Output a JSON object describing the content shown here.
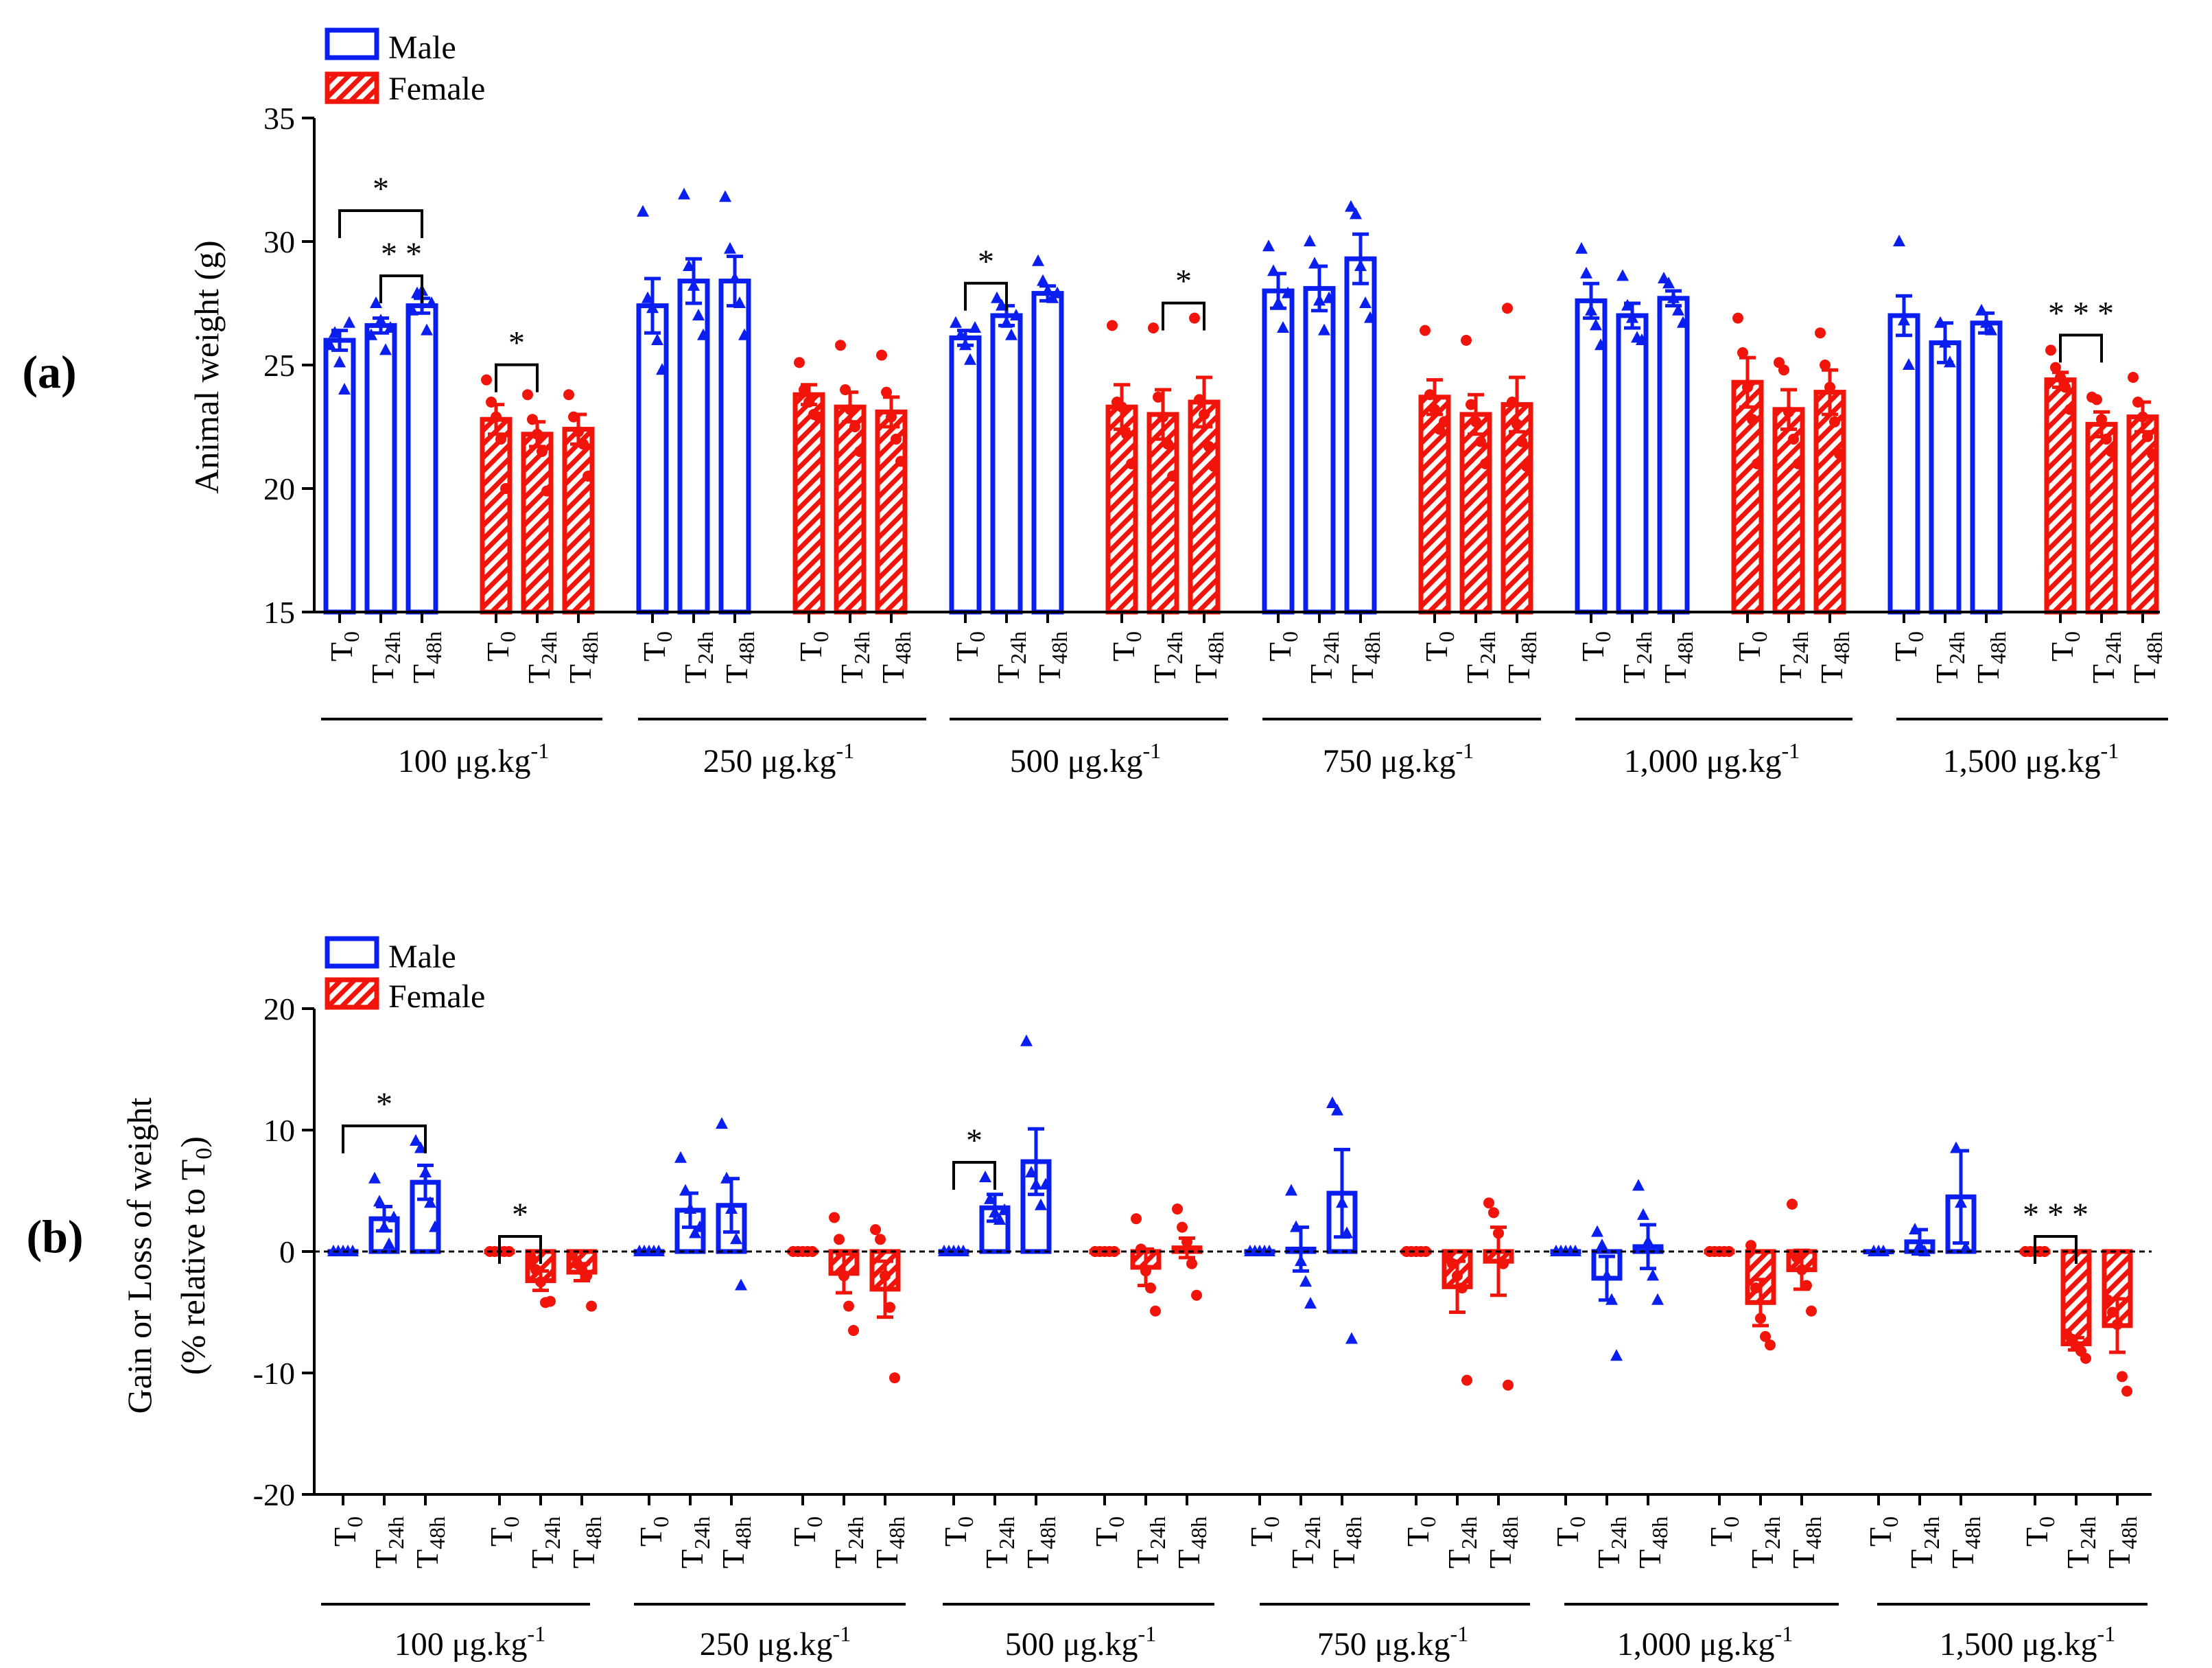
{
  "colors": {
    "male": "#0a1ef0",
    "female": "#f0140a",
    "axis": "#000000"
  },
  "legend": {
    "male": "Male",
    "female": "Female"
  },
  "group_labels": [
    "100 μg.kg",
    "250 μg.kg",
    "500 μg.kg",
    "750 μg.kg",
    "1,000 μg.kg",
    "1,500 μg.kg"
  ],
  "group_exponent": "-1",
  "time_points": [
    {
      "base": "T",
      "sub": "0"
    },
    {
      "base": "T",
      "sub": "24h"
    },
    {
      "base": "T",
      "sub": "48h"
    }
  ],
  "chart_data": [
    {
      "panel": "(a)",
      "type": "bar",
      "ylabel": "Animal weight (g)",
      "ylim": [
        15,
        35
      ],
      "yticks": [
        15,
        20,
        25,
        30,
        35
      ],
      "zero_line": false,
      "series": [
        {
          "name": "Male",
          "group": "100 μg.kg-1",
          "means": [
            26.0,
            26.6,
            27.4
          ],
          "sem": [
            0.4,
            0.3,
            0.3
          ],
          "points": [
            [
              25.8,
              26.3,
              25.1,
              24.0,
              26.7
            ],
            [
              26.2,
              27.5,
              26.8,
              25.6,
              26.5
            ],
            [
              27.2,
              27.9,
              28.0,
              26.4,
              27.5
            ]
          ]
        },
        {
          "name": "Female",
          "group": "100 μg.kg-1",
          "means": [
            22.8,
            22.2,
            22.4
          ],
          "sem": [
            0.6,
            0.5,
            0.6
          ],
          "points": [
            [
              24.4,
              23.5,
              22.9,
              22.0,
              20.0
            ],
            [
              23.8,
              22.8,
              22.2,
              21.5,
              19.9
            ],
            [
              23.8,
              22.9,
              22.3,
              21.8,
              20.5
            ]
          ]
        },
        {
          "name": "Male",
          "group": "250 μg.kg-1",
          "means": [
            27.4,
            28.4,
            28.4
          ],
          "sem": [
            1.1,
            0.9,
            1.0
          ],
          "points": [
            [
              31.2,
              27.7,
              27.3,
              26.0,
              24.8
            ],
            [
              31.9,
              29.0,
              28.2,
              27.0,
              26.2
            ],
            [
              31.8,
              29.7,
              28.5,
              27.5,
              26.2
            ]
          ]
        },
        {
          "name": "Female",
          "group": "250 μg.kg-1",
          "means": [
            23.8,
            23.3,
            23.1
          ],
          "sem": [
            0.4,
            0.6,
            0.6
          ],
          "points": [
            [
              25.1,
              24.0,
              23.5,
              23.0,
              22.9
            ],
            [
              25.8,
              24.0,
              23.2,
              22.5,
              21.5
            ],
            [
              25.4,
              23.9,
              22.9,
              22.0,
              21.1
            ]
          ]
        },
        {
          "name": "Male",
          "group": "500 μg.kg-1",
          "means": [
            26.1,
            27.0,
            27.9
          ],
          "sem": [
            0.3,
            0.4,
            0.3
          ],
          "points": [
            [
              26.7,
              26.2,
              25.8,
              25.2,
              26.5
            ],
            [
              27.7,
              27.4,
              26.7,
              26.2,
              27.0
            ],
            [
              29.2,
              28.4,
              28.0,
              27.7,
              27.9
            ]
          ]
        },
        {
          "name": "Female",
          "group": "500 μg.kg-1",
          "means": [
            23.3,
            23.0,
            23.5
          ],
          "sem": [
            0.9,
            1.0,
            1.0
          ],
          "points": [
            [
              26.6,
              23.5,
              23.3,
              22.2,
              21.0
            ],
            [
              26.5,
              23.7,
              22.9,
              21.8,
              20.5
            ],
            [
              26.9,
              23.6,
              23.0,
              21.7,
              20.9
            ]
          ]
        },
        {
          "name": "Male",
          "group": "750 μg.kg-1",
          "means": [
            28.0,
            28.1,
            29.3
          ],
          "sem": [
            0.7,
            0.9,
            1.0
          ],
          "points": [
            [
              29.8,
              28.8,
              27.5,
              26.5,
              27.9
            ],
            [
              30.0,
              29.1,
              27.6,
              26.4,
              27.7
            ],
            [
              31.4,
              31.1,
              29.0,
              27.5,
              26.9
            ]
          ]
        },
        {
          "name": "Female",
          "group": "750 μg.kg-1",
          "means": [
            23.7,
            23.0,
            23.4
          ],
          "sem": [
            0.7,
            0.8,
            1.1
          ],
          "points": [
            [
              26.4,
              23.8,
              23.2,
              22.4,
              22.7
            ],
            [
              26.0,
              23.4,
              22.7,
              21.9,
              21.0
            ],
            [
              27.3,
              23.5,
              22.6,
              21.9,
              20.9
            ]
          ]
        },
        {
          "name": "Male",
          "group": "1,000 μg.kg-1",
          "means": [
            27.6,
            27.0,
            27.7
          ],
          "sem": [
            0.7,
            0.5,
            0.3
          ],
          "points": [
            [
              29.7,
              28.7,
              27.2,
              26.6,
              25.8
            ],
            [
              28.6,
              27.4,
              26.9,
              26.1,
              26.0
            ],
            [
              28.5,
              28.3,
              27.7,
              27.2,
              26.7
            ]
          ]
        },
        {
          "name": "Female",
          "group": "1,000 μg.kg-1",
          "means": [
            24.3,
            23.2,
            23.9
          ],
          "sem": [
            1.0,
            0.8,
            0.9
          ],
          "points": [
            [
              26.9,
              25.5,
              24.1,
              22.8,
              21.0
            ],
            [
              25.1,
              24.8,
              23.1,
              22.0,
              21.0
            ],
            [
              26.3,
              25.0,
              24.1,
              22.7,
              21.4
            ]
          ]
        },
        {
          "name": "Male",
          "group": "1,500 μg.kg-1",
          "means": [
            27.0,
            25.9,
            26.7
          ],
          "sem": [
            0.8,
            0.8,
            0.4
          ],
          "points": [
            [
              30.0,
              26.8,
              25.0
            ],
            [
              26.7,
              25.9,
              25.1
            ],
            [
              27.2,
              26.7,
              26.4
            ]
          ]
        },
        {
          "name": "Female",
          "group": "1,500 μg.kg-1",
          "means": [
            24.4,
            22.6,
            22.9
          ],
          "sem": [
            0.3,
            0.5,
            0.6
          ],
          "points": [
            [
              25.6,
              24.9,
              24.5,
              24.1,
              23.2
            ],
            [
              23.7,
              23.6,
              22.8,
              22.0,
              21.5
            ],
            [
              24.5,
              23.5,
              22.9,
              22.1,
              21.4
            ]
          ]
        }
      ],
      "significance": [
        {
          "series": 0,
          "from": 0,
          "to": 2,
          "label": "*",
          "level": 2
        },
        {
          "series": 0,
          "from": 1,
          "to": 2,
          "label": "* *",
          "level": 1
        },
        {
          "series": 1,
          "from": 0,
          "to": 1,
          "label": "*",
          "level": 1
        },
        {
          "series": 4,
          "from": 0,
          "to": 1,
          "label": "*",
          "level": 1
        },
        {
          "series": 5,
          "from": 1,
          "to": 2,
          "label": "*",
          "level": 1
        },
        {
          "series": 11,
          "from": 0,
          "to": 1,
          "label": "* * *",
          "level": 1
        }
      ]
    },
    {
      "panel": "(b)",
      "type": "bar",
      "ylabel": "Gain or Loss of weight",
      "ylabel2_prefix": "(% relative to T",
      "ylabel2_sub": "0",
      "ylabel2_suffix": ")",
      "ylim": [
        -20,
        20
      ],
      "yticks": [
        -20,
        -10,
        0,
        10,
        20
      ],
      "zero_line": true,
      "series": [
        {
          "name": "Male",
          "group": "100 μg.kg-1",
          "means": [
            0,
            2.7,
            5.7
          ],
          "sem": [
            0,
            1.0,
            1.4
          ],
          "points": [
            [
              0,
              0,
              0,
              0,
              0
            ],
            [
              6.0,
              4.1,
              2.0,
              0.6,
              2.8
            ],
            [
              9.1,
              8.5,
              6.5,
              4.0,
              2.0
            ]
          ]
        },
        {
          "name": "Female",
          "group": "100 μg.kg-1",
          "means": [
            0,
            -2.4,
            -1.7
          ],
          "sem": [
            0,
            0.8,
            0.7
          ],
          "points": [
            [
              0,
              0,
              0,
              0,
              0
            ],
            [
              -0.5,
              -1.5,
              -2.5,
              -4.2,
              -4.1
            ],
            [
              -0.3,
              -1.0,
              -1.5,
              -2.0,
              -4.5
            ]
          ]
        },
        {
          "name": "Male",
          "group": "250 μg.kg-1",
          "means": [
            0,
            3.4,
            3.8
          ],
          "sem": [
            0,
            1.4,
            2.2
          ],
          "points": [
            [
              0,
              0,
              0,
              0,
              0
            ],
            [
              7.7,
              5.0,
              3.5,
              1.5,
              2.0
            ],
            [
              10.5,
              6.0,
              3.5,
              1.0,
              -2.8
            ]
          ]
        },
        {
          "name": "Female",
          "group": "250 μg.kg-1",
          "means": [
            0,
            -1.8,
            -3.1
          ],
          "sem": [
            0,
            1.6,
            2.3
          ],
          "points": [
            [
              0,
              0,
              0,
              0,
              0
            ],
            [
              2.8,
              1.0,
              -2.0,
              -4.5,
              -6.5
            ],
            [
              1.8,
              1.0,
              -2.0,
              -4.6,
              -10.4
            ]
          ]
        },
        {
          "name": "Male",
          "group": "500 μg.kg-1",
          "means": [
            0,
            3.6,
            7.4
          ],
          "sem": [
            0,
            1.1,
            2.7
          ],
          "points": [
            [
              0,
              0,
              0,
              0,
              0
            ],
            [
              6.1,
              4.3,
              3.2,
              2.6,
              3.4
            ],
            [
              17.3,
              6.5,
              5.5,
              3.8,
              5.5
            ]
          ]
        },
        {
          "name": "Female",
          "group": "500 μg.kg-1",
          "means": [
            0,
            -1.3,
            0.3
          ],
          "sem": [
            0,
            1.5,
            0.8
          ],
          "points": [
            [
              0,
              0,
              0,
              0,
              0
            ],
            [
              2.7,
              0.2,
              -1.6,
              -3.0,
              -4.9
            ],
            [
              3.5,
              2.0,
              0.8,
              -1.0,
              -3.6
            ]
          ]
        },
        {
          "name": "Male",
          "group": "750 μg.kg-1",
          "means": [
            0,
            0.2,
            4.8
          ],
          "sem": [
            0,
            1.8,
            3.6
          ],
          "points": [
            [
              0,
              0,
              0,
              0,
              0
            ],
            [
              5.0,
              2.0,
              -0.8,
              -2.5,
              -4.3
            ],
            [
              12.2,
              11.6,
              4.0,
              1.5,
              -7.2
            ]
          ]
        },
        {
          "name": "Female",
          "group": "750 μg.kg-1",
          "means": [
            0,
            -2.9,
            -0.8
          ],
          "sem": [
            0,
            2.1,
            2.8
          ],
          "points": [
            [
              0,
              0,
              0,
              0,
              0
            ],
            [
              -0.5,
              -1.0,
              -2.0,
              -3.0,
              -10.6
            ],
            [
              4.0,
              3.2,
              1.5,
              -1.0,
              -11.0
            ]
          ]
        },
        {
          "name": "Male",
          "group": "1,000 μg.kg-1",
          "means": [
            0,
            -2.2,
            0.4
          ],
          "sem": [
            0,
            1.8,
            1.8
          ],
          "points": [
            [
              0,
              0,
              0,
              0,
              0
            ],
            [
              1.6,
              0.5,
              -2.0,
              -4.0,
              -8.6
            ],
            [
              5.4,
              3.0,
              0.8,
              -2.0,
              -4.0
            ]
          ]
        },
        {
          "name": "Female",
          "group": "1,000 μg.kg-1",
          "means": [
            0,
            -4.2,
            -1.5
          ],
          "sem": [
            0,
            1.9,
            1.6
          ],
          "points": [
            [
              0,
              0,
              0,
              0,
              0
            ],
            [
              0.5,
              -3.0,
              -5.5,
              -7.0,
              -7.7
            ],
            [
              3.9,
              -0.5,
              -1.5,
              -2.8,
              -4.9
            ]
          ]
        },
        {
          "name": "Male",
          "group": "1,500 μg.kg-1",
          "means": [
            0,
            0.8,
            4.5
          ],
          "sem": [
            0,
            1.0,
            3.8
          ],
          "points": [
            [
              0,
              0,
              0
            ],
            [
              1.8,
              0.5,
              0.0
            ],
            [
              8.5,
              4.0,
              0.3
            ]
          ]
        },
        {
          "name": "Female",
          "group": "1,500 μg.kg-1",
          "means": [
            0,
            -7.6,
            -6.1
          ],
          "sem": [
            0,
            0.5,
            2.2
          ],
          "points": [
            [
              0,
              0,
              0,
              0,
              0
            ],
            [
              -6.8,
              -7.2,
              -7.8,
              -8.2,
              -8.8
            ],
            [
              -4.0,
              -5.0,
              -6.0,
              -10.3,
              -11.5
            ]
          ]
        }
      ],
      "significance": [
        {
          "series": 0,
          "from": 0,
          "to": 2,
          "label": "*",
          "level": 1
        },
        {
          "series": 1,
          "from": 0,
          "to": 1,
          "label": "*",
          "level": 1
        },
        {
          "series": 4,
          "from": 0,
          "to": 1,
          "label": "*",
          "level": 1
        },
        {
          "series": 11,
          "from": 0,
          "to": 1,
          "label": "* * *",
          "level": 1
        }
      ]
    }
  ]
}
